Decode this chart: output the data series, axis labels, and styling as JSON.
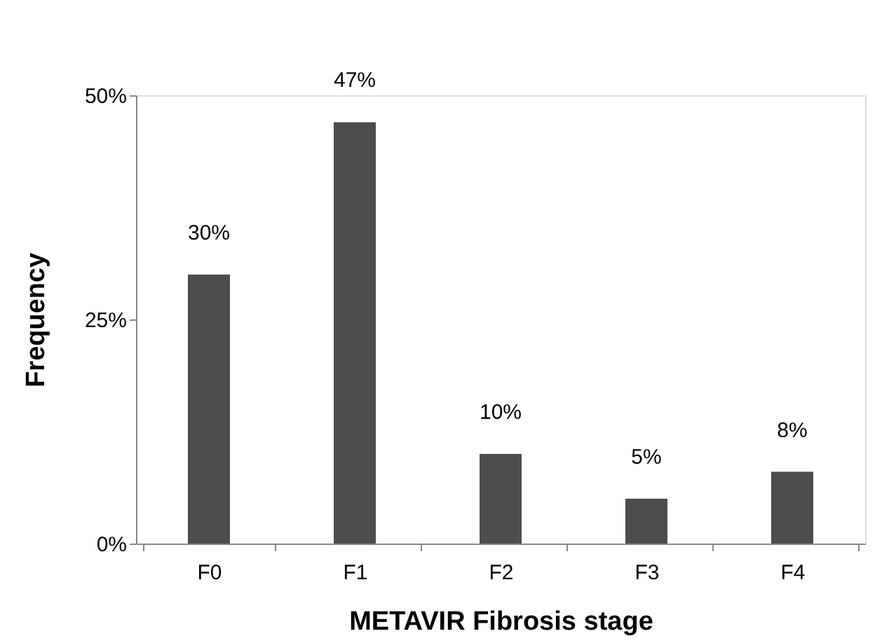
{
  "chart_data": {
    "type": "bar",
    "xlabel": "METAVIR Fibrosis stage",
    "ylabel": "Frequency",
    "categories": [
      "F0",
      "F1",
      "F2",
      "F3",
      "F4"
    ],
    "values": [
      30,
      47,
      10,
      5,
      8
    ],
    "color": "#4d4d4d",
    "value_labels": [
      "30%",
      "47%",
      "10%",
      "5%",
      "8%"
    ],
    "ylim": [
      0,
      50
    ],
    "yticks": [
      {
        "value": 0,
        "label": "0%"
      },
      {
        "value": 25,
        "label": "25%"
      },
      {
        "value": 50,
        "label": "50%"
      }
    ],
    "grid": false
  }
}
